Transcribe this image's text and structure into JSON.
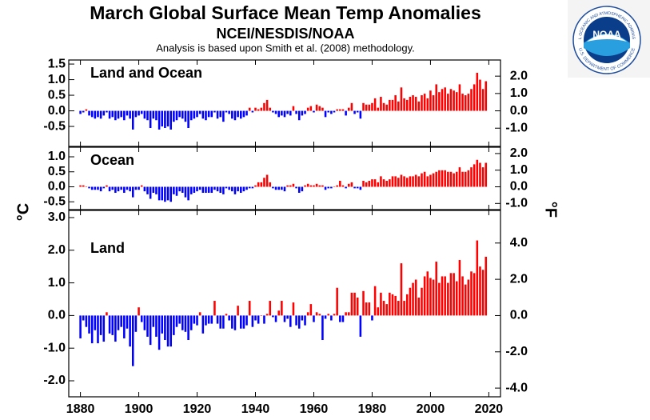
{
  "header": {
    "title": "March Global Surface Mean Temp Anomalies",
    "subtitle": "NCEI/NESDIS/NOAA",
    "note": "Analysis is based upon Smith et al. (2008) methodology.",
    "ylabel": "°C",
    "y2label": "°F"
  },
  "logo": {
    "name": "NOAA",
    "top_text": "NATIONAL OCEANIC AND ATMOSPHERIC ADMINISTRATION",
    "bottom_text": "U.S. DEPARTMENT OF COMMERCE"
  },
  "chart_data": [
    {
      "type": "bar",
      "label": "Land and Ocean",
      "positive_color": "#ff0000",
      "negative_color": "#0000ff",
      "xlim": [
        1876,
        2024
      ],
      "xticks": [
        1880,
        1900,
        1920,
        1940,
        1960,
        1980,
        2000,
        2020
      ],
      "ylim": [
        -1.14,
        1.63
      ],
      "yticks": [
        1.5,
        {
          "value": 1.0,
          "label": "1.0"
        },
        0.5,
        {
          "value": 0.0,
          "label": "0.0"
        },
        -0.5
      ],
      "y2lim": [
        -2.05,
        2.93
      ],
      "y2ticks": [
        {
          "value": 2.0,
          "label": "2.0"
        },
        {
          "value": 1.0,
          "label": "1.0"
        },
        {
          "value": 0.0,
          "label": "0.0"
        },
        {
          "value": -1.0,
          "label": "-1.0"
        }
      ],
      "x": [
        1880,
        1881,
        1882,
        1883,
        1884,
        1885,
        1886,
        1887,
        1888,
        1889,
        1890,
        1891,
        1892,
        1893,
        1894,
        1895,
        1896,
        1897,
        1898,
        1899,
        1900,
        1901,
        1902,
        1903,
        1904,
        1905,
        1906,
        1907,
        1908,
        1909,
        1910,
        1911,
        1912,
        1913,
        1914,
        1915,
        1916,
        1917,
        1918,
        1919,
        1920,
        1921,
        1922,
        1923,
        1924,
        1925,
        1926,
        1927,
        1928,
        1929,
        1930,
        1931,
        1932,
        1933,
        1934,
        1935,
        1936,
        1937,
        1938,
        1939,
        1940,
        1941,
        1942,
        1943,
        1944,
        1945,
        1946,
        1947,
        1948,
        1949,
        1950,
        1951,
        1952,
        1953,
        1954,
        1955,
        1956,
        1957,
        1958,
        1959,
        1960,
        1961,
        1962,
        1963,
        1964,
        1965,
        1966,
        1967,
        1968,
        1969,
        1970,
        1971,
        1972,
        1973,
        1974,
        1975,
        1976,
        1977,
        1978,
        1979,
        1980,
        1981,
        1982,
        1983,
        1984,
        1985,
        1986,
        1987,
        1988,
        1989,
        1990,
        1991,
        1992,
        1993,
        1994,
        1995,
        1996,
        1997,
        1998,
        1999,
        2000,
        2001,
        2002,
        2003,
        2004,
        2005,
        2006,
        2007,
        2008,
        2009,
        2010,
        2011,
        2012,
        2013,
        2014,
        2015,
        2016,
        2017,
        2018,
        2019
      ],
      "values": [
        -0.1,
        -0.05,
        0.05,
        -0.15,
        -0.2,
        -0.25,
        -0.2,
        -0.25,
        -0.15,
        -0.05,
        -0.25,
        -0.2,
        -0.3,
        -0.25,
        -0.2,
        -0.3,
        -0.15,
        -0.25,
        -0.6,
        -0.2,
        -0.15,
        -0.1,
        -0.25,
        -0.3,
        -0.55,
        -0.25,
        -0.3,
        -0.6,
        -0.5,
        -0.55,
        -0.5,
        -0.6,
        -0.35,
        -0.3,
        -0.2,
        -0.25,
        -0.35,
        -0.55,
        -0.3,
        -0.25,
        -0.2,
        -0.1,
        -0.25,
        -0.3,
        -0.2,
        -0.2,
        -0.05,
        -0.25,
        -0.2,
        -0.35,
        -0.05,
        -0.1,
        -0.25,
        -0.3,
        -0.2,
        -0.25,
        -0.2,
        -0.15,
        0.1,
        -0.05,
        0.1,
        0.05,
        0.1,
        0.25,
        0.35,
        0.1,
        -0.05,
        -0.1,
        -0.2,
        -0.15,
        -0.2,
        -0.1,
        -0.15,
        0.15,
        -0.1,
        -0.3,
        -0.15,
        -0.1,
        0.1,
        0.15,
        -0.05,
        0.2,
        0.15,
        0.1,
        -0.2,
        -0.05,
        -0.1,
        -0.05,
        0.05,
        0.05,
        0.05,
        -0.15,
        0.1,
        0.25,
        -0.1,
        -0.05,
        -0.25,
        0.25,
        0.2,
        0.2,
        0.25,
        0.4,
        0.1,
        0.45,
        0.25,
        0.2,
        0.35,
        0.35,
        0.5,
        0.3,
        0.75,
        0.4,
        0.35,
        0.45,
        0.5,
        0.45,
        0.3,
        0.5,
        0.55,
        0.4,
        0.65,
        0.5,
        0.85,
        0.6,
        0.7,
        0.75,
        0.55,
        0.7,
        0.65,
        0.6,
        0.85,
        0.55,
        0.5,
        0.55,
        0.7,
        0.85,
        1.22,
        1.0,
        0.7,
        0.95
      ]
    },
    {
      "type": "bar",
      "label": "Ocean",
      "positive_color": "#ff0000",
      "negative_color": "#0000ff",
      "xlim": [
        1876,
        2024
      ],
      "xticks": [
        1880,
        1900,
        1920,
        1940,
        1960,
        1980,
        2000,
        2020
      ],
      "ylim": [
        -0.76,
        1.32
      ],
      "yticks": [
        {
          "value": 1.0,
          "label": "1.0"
        },
        0.5,
        {
          "value": 0.0,
          "label": "0.0"
        },
        -0.5
      ],
      "y2lim": [
        -1.37,
        2.38
      ],
      "y2ticks": [
        {
          "value": 2.0,
          "label": "2.0"
        },
        {
          "value": 1.0,
          "label": "1.0"
        },
        {
          "value": 0.0,
          "label": "0.0"
        },
        {
          "value": -1.0,
          "label": "-1.0"
        }
      ],
      "x": [
        1880,
        1881,
        1882,
        1883,
        1884,
        1885,
        1886,
        1887,
        1888,
        1889,
        1890,
        1891,
        1892,
        1893,
        1894,
        1895,
        1896,
        1897,
        1898,
        1899,
        1900,
        1901,
        1902,
        1903,
        1904,
        1905,
        1906,
        1907,
        1908,
        1909,
        1910,
        1911,
        1912,
        1913,
        1914,
        1915,
        1916,
        1917,
        1918,
        1919,
        1920,
        1921,
        1922,
        1923,
        1924,
        1925,
        1926,
        1927,
        1928,
        1929,
        1930,
        1931,
        1932,
        1933,
        1934,
        1935,
        1936,
        1937,
        1938,
        1939,
        1940,
        1941,
        1942,
        1943,
        1944,
        1945,
        1946,
        1947,
        1948,
        1949,
        1950,
        1951,
        1952,
        1953,
        1954,
        1955,
        1956,
        1957,
        1958,
        1959,
        1960,
        1961,
        1962,
        1963,
        1964,
        1965,
        1966,
        1967,
        1968,
        1969,
        1970,
        1971,
        1972,
        1973,
        1974,
        1975,
        1976,
        1977,
        1978,
        1979,
        1980,
        1981,
        1982,
        1983,
        1984,
        1985,
        1986,
        1987,
        1988,
        1989,
        1990,
        1991,
        1992,
        1993,
        1994,
        1995,
        1996,
        1997,
        1998,
        1999,
        2000,
        2001,
        2002,
        2003,
        2004,
        2005,
        2006,
        2007,
        2008,
        2009,
        2010,
        2011,
        2012,
        2013,
        2014,
        2015,
        2016,
        2017,
        2018,
        2019
      ],
      "values": [
        0.05,
        0.05,
        0.0,
        -0.05,
        -0.1,
        -0.1,
        -0.1,
        -0.15,
        -0.05,
        0.05,
        -0.15,
        -0.1,
        -0.2,
        -0.15,
        -0.1,
        -0.2,
        -0.1,
        -0.15,
        -0.35,
        -0.1,
        -0.1,
        0.05,
        -0.15,
        -0.25,
        -0.4,
        -0.2,
        -0.25,
        -0.45,
        -0.45,
        -0.5,
        -0.45,
        -0.5,
        -0.25,
        -0.3,
        -0.15,
        -0.2,
        -0.35,
        -0.45,
        -0.25,
        -0.2,
        -0.15,
        -0.1,
        -0.2,
        -0.2,
        -0.2,
        -0.2,
        -0.1,
        -0.15,
        -0.2,
        -0.25,
        -0.05,
        -0.1,
        -0.15,
        -0.25,
        -0.15,
        -0.2,
        -0.15,
        -0.1,
        -0.05,
        -0.05,
        0.05,
        0.15,
        0.15,
        0.3,
        0.4,
        0.15,
        -0.05,
        -0.1,
        -0.1,
        -0.1,
        -0.15,
        0.05,
        0.05,
        0.1,
        -0.05,
        -0.2,
        -0.15,
        0.05,
        0.1,
        0.05,
        0.05,
        0.1,
        0.05,
        0.05,
        -0.1,
        -0.05,
        -0.05,
        0.0,
        0.05,
        0.2,
        0.05,
        -0.05,
        0.1,
        0.15,
        -0.05,
        -0.05,
        -0.1,
        0.2,
        0.15,
        0.2,
        0.25,
        0.25,
        0.15,
        0.35,
        0.25,
        0.2,
        0.25,
        0.35,
        0.35,
        0.3,
        0.4,
        0.35,
        0.3,
        0.35,
        0.35,
        0.4,
        0.35,
        0.45,
        0.5,
        0.35,
        0.4,
        0.45,
        0.5,
        0.55,
        0.55,
        0.55,
        0.5,
        0.5,
        0.45,
        0.5,
        0.65,
        0.5,
        0.5,
        0.55,
        0.65,
        0.75,
        0.9,
        0.8,
        0.65,
        0.8
      ]
    },
    {
      "type": "bar",
      "label": "Land",
      "positive_color": "#ff0000",
      "negative_color": "#0000ff",
      "show_xtick_labels": true,
      "xlim": [
        1876,
        2024
      ],
      "xticks": [
        1880,
        1900,
        1920,
        1940,
        1960,
        1980,
        2000,
        2020
      ],
      "ylim": [
        -2.49,
        3.22
      ],
      "yticks": [
        {
          "value": 3.0,
          "label": "3.0"
        },
        {
          "value": 2.0,
          "label": "2.0"
        },
        {
          "value": 1.0,
          "label": "1.0"
        },
        {
          "value": 0.0,
          "label": "0.0"
        },
        {
          "value": -1.0,
          "label": "-1.0"
        },
        {
          "value": -2.0,
          "label": "-2.0"
        }
      ],
      "y2lim": [
        -4.48,
        5.8
      ],
      "y2ticks": [
        {
          "value": 4.0,
          "label": "4.0"
        },
        {
          "value": 2.0,
          "label": "2.0"
        },
        {
          "value": 0.0,
          "label": "0.0"
        },
        {
          "value": -2.0,
          "label": "-2.0"
        },
        {
          "value": -4.0,
          "label": "-4.0"
        }
      ],
      "x": [
        1880,
        1881,
        1882,
        1883,
        1884,
        1885,
        1886,
        1887,
        1888,
        1889,
        1890,
        1891,
        1892,
        1893,
        1894,
        1895,
        1896,
        1897,
        1898,
        1899,
        1900,
        1901,
        1902,
        1903,
        1904,
        1905,
        1906,
        1907,
        1908,
        1909,
        1910,
        1911,
        1912,
        1913,
        1914,
        1915,
        1916,
        1917,
        1918,
        1919,
        1920,
        1921,
        1922,
        1923,
        1924,
        1925,
        1926,
        1927,
        1928,
        1929,
        1930,
        1931,
        1932,
        1933,
        1934,
        1935,
        1936,
        1937,
        1938,
        1939,
        1940,
        1941,
        1942,
        1943,
        1944,
        1945,
        1946,
        1947,
        1948,
        1949,
        1950,
        1951,
        1952,
        1953,
        1954,
        1955,
        1956,
        1957,
        1958,
        1959,
        1960,
        1961,
        1962,
        1963,
        1964,
        1965,
        1966,
        1967,
        1968,
        1969,
        1970,
        1971,
        1972,
        1973,
        1974,
        1975,
        1976,
        1977,
        1978,
        1979,
        1980,
        1981,
        1982,
        1983,
        1984,
        1985,
        1986,
        1987,
        1988,
        1989,
        1990,
        1991,
        1992,
        1993,
        1994,
        1995,
        1996,
        1997,
        1998,
        1999,
        2000,
        2001,
        2002,
        2003,
        2004,
        2005,
        2006,
        2007,
        2008,
        2009,
        2010,
        2011,
        2012,
        2013,
        2014,
        2015,
        2016,
        2017,
        2018,
        2019
      ],
      "values": [
        -0.7,
        -0.15,
        -0.35,
        -0.55,
        -0.85,
        -0.45,
        -0.85,
        -0.6,
        -0.8,
        0.1,
        -0.55,
        -0.6,
        -0.8,
        -0.45,
        -0.35,
        -0.7,
        -0.4,
        -0.95,
        -1.55,
        -0.5,
        0.25,
        -0.2,
        -0.45,
        -0.65,
        -0.9,
        -0.35,
        -0.65,
        -1.05,
        -0.55,
        -0.75,
        -0.95,
        -0.95,
        -0.6,
        -0.35,
        -0.25,
        -0.45,
        -0.5,
        -0.75,
        -0.45,
        -0.25,
        -0.3,
        0.1,
        -0.55,
        -0.3,
        -0.25,
        -0.25,
        0.45,
        -0.25,
        -0.4,
        -0.4,
        0.05,
        -0.15,
        -0.4,
        -0.45,
        0.3,
        -0.4,
        -0.4,
        -0.3,
        0.45,
        -0.35,
        -0.15,
        -0.25,
        0.0,
        -0.25,
        0.05,
        0.45,
        -0.05,
        -0.2,
        0.15,
        0.45,
        -0.2,
        -0.1,
        -0.35,
        0.4,
        -0.3,
        -0.4,
        -0.15,
        -0.3,
        0.1,
        0.35,
        -0.2,
        0.1,
        0.05,
        -0.75,
        -0.1,
        0.05,
        -0.15,
        0.05,
        0.85,
        -0.2,
        -0.2,
        0.1,
        0.1,
        0.7,
        0.7,
        0.55,
        -0.65,
        0.75,
        0.4,
        0.4,
        -0.15,
        0.9,
        0.25,
        0.7,
        0.45,
        0.35,
        0.7,
        0.65,
        0.6,
        0.45,
        1.6,
        0.45,
        0.65,
        0.85,
        1.0,
        1.1,
        0.55,
        0.85,
        1.2,
        1.35,
        1.15,
        1.1,
        1.65,
        1.0,
        1.2,
        1.2,
        1.0,
        1.3,
        1.3,
        1.05,
        1.7,
        1.2,
        0.95,
        1.1,
        1.35,
        1.3,
        2.3,
        1.5,
        1.4,
        1.8
      ]
    }
  ]
}
